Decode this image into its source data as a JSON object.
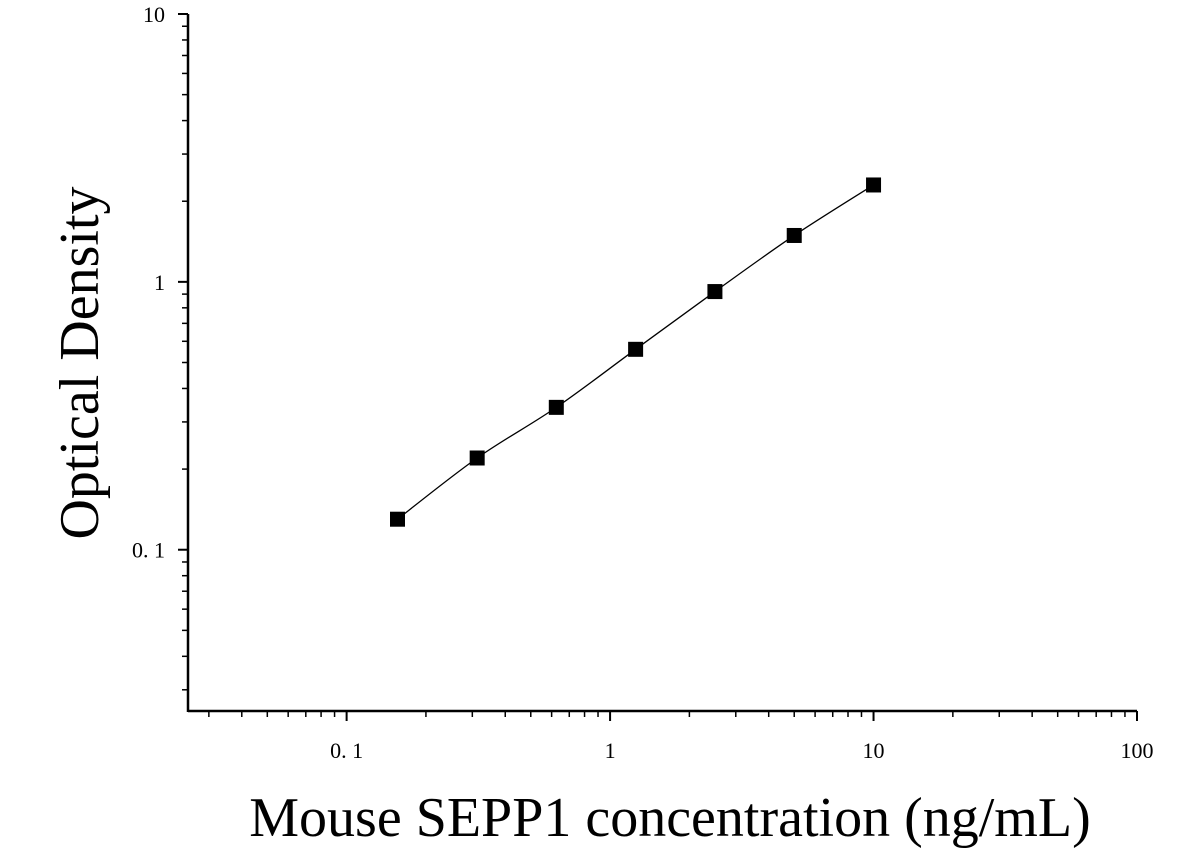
{
  "chart_data": {
    "type": "scatter",
    "title": "",
    "xlabel": "Mouse SEPP1 concentration (ng/mL)",
    "ylabel": "Optical Density",
    "xscale": "log",
    "yscale": "log",
    "xlim": [
      0.025,
      100
    ],
    "ylim": [
      0.025,
      10
    ],
    "x_ticks": [
      {
        "value": 0.1,
        "label": "0. 1"
      },
      {
        "value": 1,
        "label": "1"
      },
      {
        "value": 10,
        "label": "10"
      },
      {
        "value": 100,
        "label": "100"
      }
    ],
    "y_ticks": [
      {
        "value": 0.1,
        "label": "0. 1"
      },
      {
        "value": 1,
        "label": "1"
      },
      {
        "value": 10,
        "label": "10"
      }
    ],
    "grid": false,
    "legend": "none",
    "marker": "square",
    "fit_line": true,
    "series": [
      {
        "x": [
          0.156,
          0.313,
          0.625,
          1.25,
          2.5,
          5,
          10
        ],
        "y": [
          0.13,
          0.22,
          0.34,
          0.56,
          0.92,
          1.49,
          2.3
        ]
      }
    ],
    "colors": {
      "marker": "#000000",
      "line": "#000000",
      "axis": "#000000"
    }
  }
}
